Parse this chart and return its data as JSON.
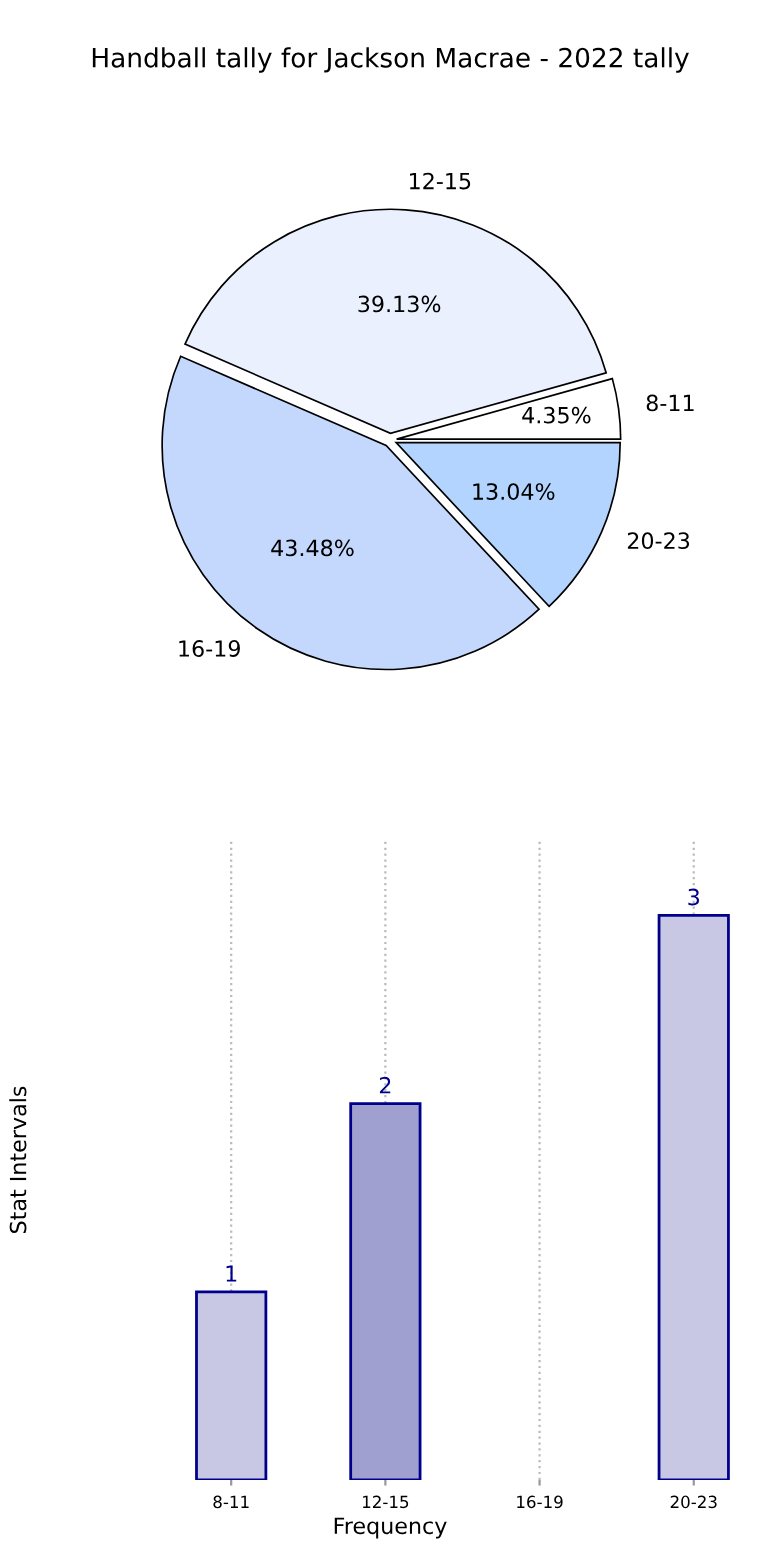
{
  "chart_data": [
    {
      "type": "bar",
      "title": "Handball tally for Jackson Macrae - 2022 tally",
      "xlabel": "Frequency",
      "ylabel": "Stat Intervals",
      "categories": [
        "8-11",
        "12-15",
        "16-19",
        "20-23"
      ],
      "values": [
        1,
        2,
        null,
        3
      ],
      "ylim": [
        0,
        3.4
      ],
      "tick_labels": "x",
      "colors": [
        "#c8c8e4",
        "#a0a0d0",
        "#c8c8e4",
        "#c8c8e4"
      ],
      "data_labels": true,
      "grid": "x"
    },
    {
      "type": "pie",
      "categories": [
        "8-11",
        "12-15",
        "16-19",
        "20-23"
      ],
      "values": [
        4.35,
        39.13,
        43.48,
        13.04
      ],
      "colors": [
        "#ffffff",
        "#eaf0fe",
        "#c4d8fe",
        "#b3d4ff"
      ],
      "value_labels": [
        "4.35%",
        "39.13%",
        "43.48%",
        "13.04%"
      ]
    }
  ]
}
